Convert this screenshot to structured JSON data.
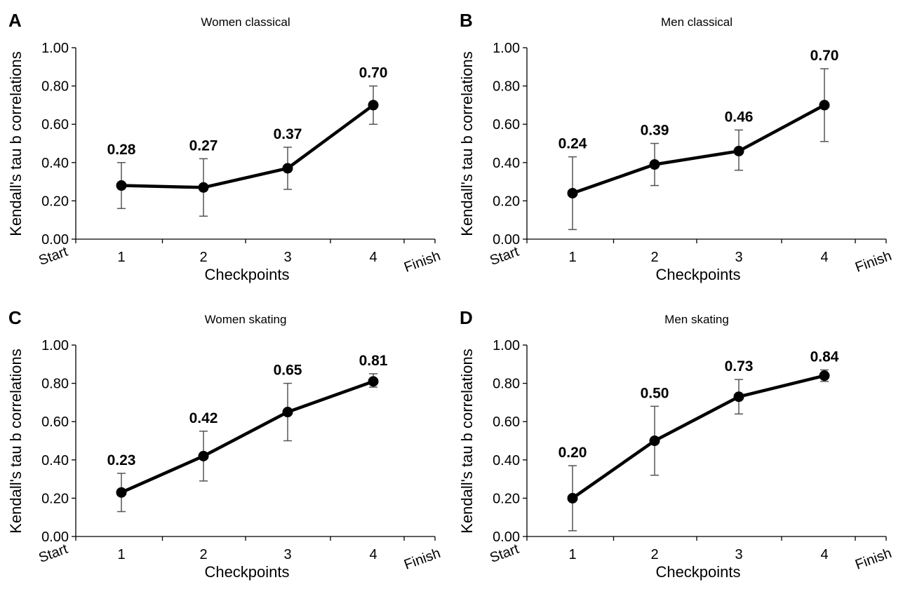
{
  "chart_data": [
    {
      "type": "line",
      "panel": "A",
      "title": "Women classical",
      "xlabel": "Checkpoints",
      "ylabel": "Kendall's tau b correlations",
      "categories": [
        "Start",
        "1",
        "2",
        "3",
        "4",
        "Finish"
      ],
      "ylim": [
        0,
        1
      ],
      "yticks": [
        "0.00",
        "0.20",
        "0.40",
        "0.60",
        "0.80",
        "1.00"
      ],
      "points": [
        {
          "x": "1",
          "y": 0.28,
          "err_low": 0.16,
          "err_high": 0.4,
          "label": "0.28"
        },
        {
          "x": "2",
          "y": 0.27,
          "err_low": 0.12,
          "err_high": 0.42,
          "label": "0.27"
        },
        {
          "x": "3",
          "y": 0.37,
          "err_low": 0.26,
          "err_high": 0.48,
          "label": "0.37"
        },
        {
          "x": "4",
          "y": 0.7,
          "err_low": 0.6,
          "err_high": 0.8,
          "label": "0.70"
        }
      ]
    },
    {
      "type": "line",
      "panel": "B",
      "title": "Men classical",
      "xlabel": "Checkpoints",
      "ylabel": "Kendall's tau b correlations",
      "categories": [
        "Start",
        "1",
        "2",
        "3",
        "4",
        "Finish"
      ],
      "ylim": [
        0,
        1
      ],
      "yticks": [
        "0.00",
        "0.20",
        "0.40",
        "0.60",
        "0.80",
        "1.00"
      ],
      "points": [
        {
          "x": "1",
          "y": 0.24,
          "err_low": 0.05,
          "err_high": 0.43,
          "label": "0.24"
        },
        {
          "x": "2",
          "y": 0.39,
          "err_low": 0.28,
          "err_high": 0.5,
          "label": "0.39"
        },
        {
          "x": "3",
          "y": 0.46,
          "err_low": 0.36,
          "err_high": 0.57,
          "label": "0.46"
        },
        {
          "x": "4",
          "y": 0.7,
          "err_low": 0.51,
          "err_high": 0.89,
          "label": "0.70"
        }
      ]
    },
    {
      "type": "line",
      "panel": "C",
      "title": "Women skating",
      "xlabel": "Checkpoints",
      "ylabel": "Kendall's tau b correlations",
      "categories": [
        "Start",
        "1",
        "2",
        "3",
        "4",
        "Finish"
      ],
      "ylim": [
        0,
        1
      ],
      "yticks": [
        "0.00",
        "0.20",
        "0.40",
        "0.60",
        "0.80",
        "1.00"
      ],
      "points": [
        {
          "x": "1",
          "y": 0.23,
          "err_low": 0.13,
          "err_high": 0.33,
          "label": "0.23"
        },
        {
          "x": "2",
          "y": 0.42,
          "err_low": 0.29,
          "err_high": 0.55,
          "label": "0.42"
        },
        {
          "x": "3",
          "y": 0.65,
          "err_low": 0.5,
          "err_high": 0.8,
          "label": "0.65"
        },
        {
          "x": "4",
          "y": 0.81,
          "err_low": 0.78,
          "err_high": 0.85,
          "label": "0.81"
        }
      ]
    },
    {
      "type": "line",
      "panel": "D",
      "title": "Men skating",
      "xlabel": "Checkpoints",
      "ylabel": "Kendall's tau b correlations",
      "categories": [
        "Start",
        "1",
        "2",
        "3",
        "4",
        "Finish"
      ],
      "ylim": [
        0,
        1
      ],
      "yticks": [
        "0.00",
        "0.20",
        "0.40",
        "0.60",
        "0.80",
        "1.00"
      ],
      "points": [
        {
          "x": "1",
          "y": 0.2,
          "err_low": 0.03,
          "err_high": 0.37,
          "label": "0.20"
        },
        {
          "x": "2",
          "y": 0.5,
          "err_low": 0.32,
          "err_high": 0.68,
          "label": "0.50"
        },
        {
          "x": "3",
          "y": 0.73,
          "err_low": 0.64,
          "err_high": 0.82,
          "label": "0.73"
        },
        {
          "x": "4",
          "y": 0.84,
          "err_low": 0.81,
          "err_high": 0.87,
          "label": "0.84"
        }
      ]
    }
  ]
}
